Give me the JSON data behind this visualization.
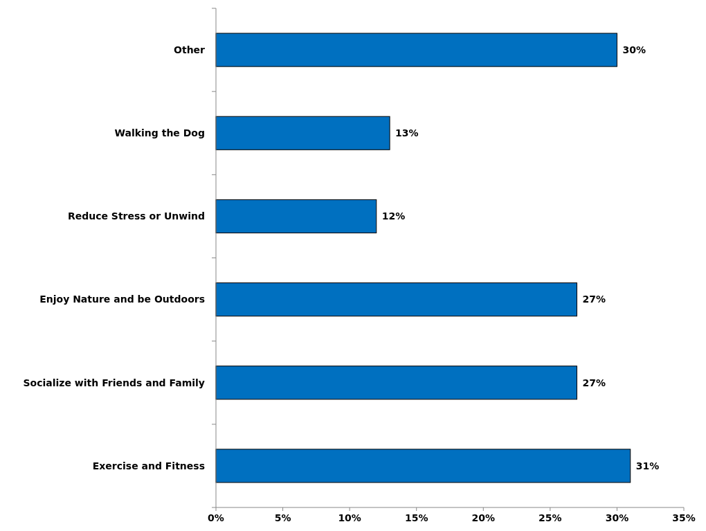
{
  "chart_data": {
    "type": "bar",
    "orientation": "horizontal",
    "categories": [
      "Other",
      "Walking the Dog",
      "Reduce Stress or Unwind",
      "Enjoy Nature and be Outdoors",
      "Socialize with Friends and Family",
      "Exercise and Fitness"
    ],
    "values": [
      30,
      13,
      12,
      27,
      27,
      31
    ],
    "value_labels": [
      "30%",
      "13%",
      "12%",
      "27%",
      "27%",
      "31%"
    ],
    "color": "#0070c0",
    "xlim": [
      0,
      35
    ],
    "xticks": [
      {
        "value": 0,
        "label": "0%"
      },
      {
        "value": 5,
        "label": "5%"
      },
      {
        "value": 10,
        "label": "10%"
      },
      {
        "value": 15,
        "label": "15%"
      },
      {
        "value": 20,
        "label": "20%"
      },
      {
        "value": 25,
        "label": "25%"
      },
      {
        "value": 30,
        "label": "30%"
      },
      {
        "value": 35,
        "label": "35%"
      }
    ]
  }
}
